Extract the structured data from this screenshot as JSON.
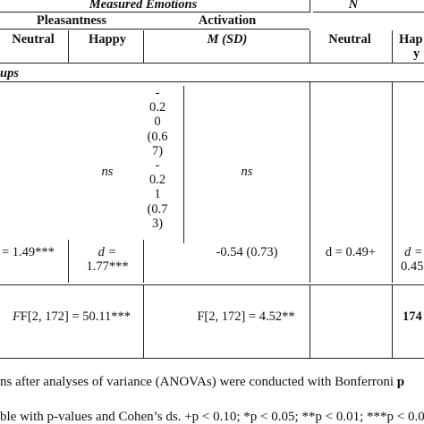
{
  "header": {
    "measured_emotions": "Measured Emotions",
    "n": "N",
    "pleasantness": "Pleasantness",
    "activation": "Activation",
    "neutral": "Neutral",
    "happy": "Happy",
    "msd": "M (SD)",
    "neutral2": "Neutral",
    "happy_wrap_1": "Hap",
    "happy_wrap_2": "y"
  },
  "section": {
    "label": "ups"
  },
  "rows": {
    "stacked_lines": [
      "-",
      "0.2",
      "0",
      "(0.6",
      "7)",
      "-",
      "0.2",
      "1",
      "(0.7",
      "3)"
    ],
    "ns1": "ns",
    "ns2": "ns",
    "d_row": {
      "c1": "= 1.49***",
      "c2_line1": "d =",
      "c2_line2": "1.77***",
      "c3": "-0.54 (0.73)",
      "c4": "d = 0.49+",
      "c5_line1": "d =",
      "c5_line2": "0.45"
    },
    "f_row": {
      "c1": "F[2, 172] = 50.11***",
      "c2": "F[2, 172] = 4.52**",
      "c3": "174"
    }
  },
  "notes": {
    "line1": "ns after analyses of variance (ANOVAs) were conducted with Bonferroni",
    "line1_bold": "p",
    "line2": "ble with p-values and Cohen’s ds. +p < 0.10; *p < 0.05; **p < 0.01; ***p < 0.0"
  }
}
